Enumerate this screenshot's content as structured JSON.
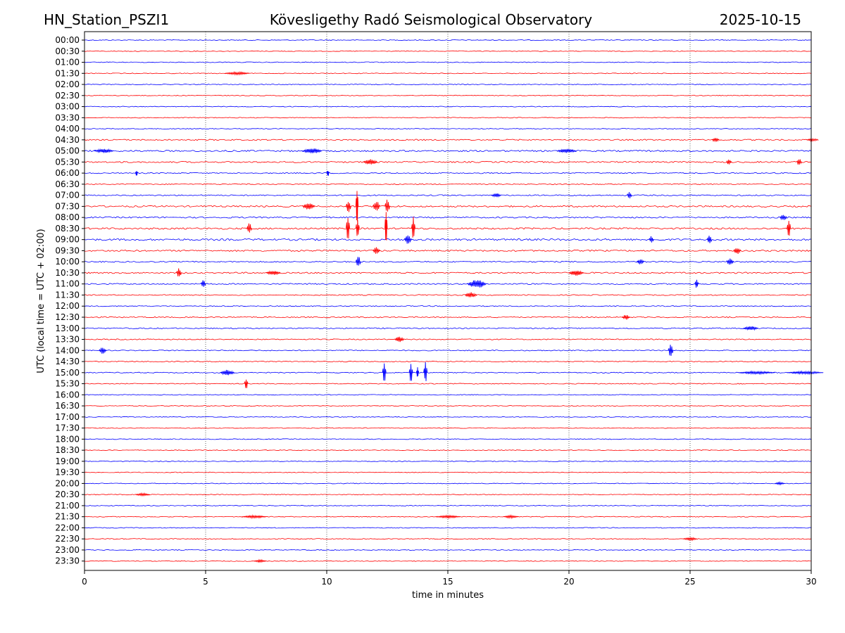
{
  "header": {
    "station": "HN_Station_PSZI1",
    "observatory": "Kövesligethy Radó Seismological Observatory",
    "date": "2025-10-15"
  },
  "colors": {
    "odd_row": "#0000ff",
    "even_row": "#ff0000",
    "axis": "#000000",
    "grid": "#000000"
  },
  "chart_data": {
    "type": "line",
    "title": "Kövesligethy Radó Seismological Observatory",
    "xlabel": "time in minutes",
    "ylabel": "UTC (local time = UTC + 02:00)",
    "xlim": [
      0,
      30
    ],
    "x_ticks": [
      0,
      5,
      10,
      15,
      20,
      25,
      30
    ],
    "x_tick_labels": [
      "0",
      "5",
      "10",
      "15",
      "20",
      "25",
      "30"
    ],
    "vertical_gridlines_at": [
      5,
      10,
      15,
      20,
      25
    ],
    "row_labels": [
      "00:00",
      "00:30",
      "01:00",
      "01:30",
      "02:00",
      "02:30",
      "03:00",
      "03:30",
      "04:00",
      "04:30",
      "05:00",
      "05:30",
      "06:00",
      "06:30",
      "07:00",
      "07:30",
      "08:00",
      "08:30",
      "09:00",
      "09:30",
      "10:00",
      "10:30",
      "11:00",
      "11:30",
      "12:00",
      "12:30",
      "13:00",
      "13:30",
      "14:00",
      "14:30",
      "15:00",
      "15:30",
      "16:00",
      "16:30",
      "17:00",
      "17:30",
      "18:00",
      "18:30",
      "19:00",
      "19:30",
      "20:00",
      "20:30",
      "21:00",
      "21:30",
      "22:00",
      "22:30",
      "23:00",
      "23:30"
    ],
    "row_colors": "alternating blue (:00) / red (:30)",
    "noise_level": [
      1,
      1,
      1,
      1,
      1,
      1,
      1,
      1,
      1,
      1.6,
      2,
      1.8,
      1.4,
      1.3,
      1.5,
      2,
      1.8,
      2.2,
      2.4,
      2,
      1.6,
      1.8,
      1.6,
      1.3,
      1.2,
      1.5,
      1.4,
      1.3,
      1.3,
      1.2,
      1.2,
      1.1,
      1,
      1,
      1,
      1,
      1,
      1,
      1,
      1,
      1,
      1,
      1,
      1,
      1,
      1.1,
      1,
      1
    ],
    "events": [
      {
        "row": "01:30",
        "minute": 5.8,
        "amplitude": 2,
        "duration": 1.0
      },
      {
        "row": "04:30",
        "minute": 25.9,
        "amplitude": 3,
        "duration": 0.3
      },
      {
        "row": "04:30",
        "minute": 29.8,
        "amplitude": 2,
        "duration": 0.5
      },
      {
        "row": "05:00",
        "minute": 0.4,
        "amplitude": 3,
        "duration": 0.8
      },
      {
        "row": "05:00",
        "minute": 9.0,
        "amplitude": 4,
        "duration": 0.8
      },
      {
        "row": "05:00",
        "minute": 19.5,
        "amplitude": 3,
        "duration": 0.8
      },
      {
        "row": "05:30",
        "minute": 11.5,
        "amplitude": 4,
        "duration": 0.6
      },
      {
        "row": "05:30",
        "minute": 26.5,
        "amplitude": 4,
        "duration": 0.2
      },
      {
        "row": "05:30",
        "minute": 29.4,
        "amplitude": 5,
        "duration": 0.2
      },
      {
        "row": "06:00",
        "minute": 10.0,
        "amplitude": 5,
        "duration": 0.1
      },
      {
        "row": "06:00",
        "minute": 2.1,
        "amplitude": 4,
        "duration": 0.1
      },
      {
        "row": "07:00",
        "minute": 16.8,
        "amplitude": 3,
        "duration": 0.4
      },
      {
        "row": "07:00",
        "minute": 22.4,
        "amplitude": 5,
        "duration": 0.2
      },
      {
        "row": "07:30",
        "minute": 10.8,
        "amplitude": 9,
        "duration": 0.2
      },
      {
        "row": "07:30",
        "minute": 11.2,
        "amplitude": 28,
        "duration": 0.1
      },
      {
        "row": "07:30",
        "minute": 11.9,
        "amplitude": 8,
        "duration": 0.3
      },
      {
        "row": "07:30",
        "minute": 12.4,
        "amplitude": 10,
        "duration": 0.2
      },
      {
        "row": "07:30",
        "minute": 9.0,
        "amplitude": 5,
        "duration": 0.5
      },
      {
        "row": "08:00",
        "minute": 28.7,
        "amplitude": 4,
        "duration": 0.3
      },
      {
        "row": "08:30",
        "minute": 10.8,
        "amplitude": 22,
        "duration": 0.15
      },
      {
        "row": "08:30",
        "minute": 11.2,
        "amplitude": 14,
        "duration": 0.15
      },
      {
        "row": "08:30",
        "minute": 12.4,
        "amplitude": 30,
        "duration": 0.1
      },
      {
        "row": "08:30",
        "minute": 13.5,
        "amplitude": 20,
        "duration": 0.15
      },
      {
        "row": "08:30",
        "minute": 6.7,
        "amplitude": 8,
        "duration": 0.2
      },
      {
        "row": "08:30",
        "minute": 29.0,
        "amplitude": 14,
        "duration": 0.15
      },
      {
        "row": "09:00",
        "minute": 13.2,
        "amplitude": 7,
        "duration": 0.3
      },
      {
        "row": "09:00",
        "minute": 25.7,
        "amplitude": 7,
        "duration": 0.2
      },
      {
        "row": "09:00",
        "minute": 23.3,
        "amplitude": 5,
        "duration": 0.2
      },
      {
        "row": "09:30",
        "minute": 11.9,
        "amplitude": 5,
        "duration": 0.3
      },
      {
        "row": "09:30",
        "minute": 26.8,
        "amplitude": 5,
        "duration": 0.3
      },
      {
        "row": "10:00",
        "minute": 11.2,
        "amplitude": 9,
        "duration": 0.2
      },
      {
        "row": "10:00",
        "minute": 22.8,
        "amplitude": 4,
        "duration": 0.3
      },
      {
        "row": "10:00",
        "minute": 26.5,
        "amplitude": 5,
        "duration": 0.3
      },
      {
        "row": "10:30",
        "minute": 3.8,
        "amplitude": 7,
        "duration": 0.2
      },
      {
        "row": "10:30",
        "minute": 7.5,
        "amplitude": 3,
        "duration": 0.6
      },
      {
        "row": "10:30",
        "minute": 20.0,
        "amplitude": 4,
        "duration": 0.6
      },
      {
        "row": "11:00",
        "minute": 15.8,
        "amplitude": 6,
        "duration": 0.8
      },
      {
        "row": "11:00",
        "minute": 4.8,
        "amplitude": 6,
        "duration": 0.2
      },
      {
        "row": "11:00",
        "minute": 25.2,
        "amplitude": 7,
        "duration": 0.15
      },
      {
        "row": "11:30",
        "minute": 15.7,
        "amplitude": 4,
        "duration": 0.5
      },
      {
        "row": "12:30",
        "minute": 22.2,
        "amplitude": 4,
        "duration": 0.3
      },
      {
        "row": "13:00",
        "minute": 27.2,
        "amplitude": 3,
        "duration": 0.6
      },
      {
        "row": "13:30",
        "minute": 12.8,
        "amplitude": 4,
        "duration": 0.4
      },
      {
        "row": "14:00",
        "minute": 0.6,
        "amplitude": 5,
        "duration": 0.3
      },
      {
        "row": "14:00",
        "minute": 24.1,
        "amplitude": 9,
        "duration": 0.2
      },
      {
        "row": "15:00",
        "minute": 12.3,
        "amplitude": 15,
        "duration": 0.15
      },
      {
        "row": "15:00",
        "minute": 13.4,
        "amplitude": 14,
        "duration": 0.15
      },
      {
        "row": "15:00",
        "minute": 13.7,
        "amplitude": 8,
        "duration": 0.1
      },
      {
        "row": "15:00",
        "minute": 14.0,
        "amplitude": 15,
        "duration": 0.15
      },
      {
        "row": "15:00",
        "minute": 5.6,
        "amplitude": 4,
        "duration": 0.6
      },
      {
        "row": "15:00",
        "minute": 27.0,
        "amplitude": 2,
        "duration": 1.5
      },
      {
        "row": "15:00",
        "minute": 29.0,
        "amplitude": 2,
        "duration": 1.5
      },
      {
        "row": "15:30",
        "minute": 6.6,
        "amplitude": 8,
        "duration": 0.15
      },
      {
        "row": "20:00",
        "minute": 28.5,
        "amplitude": 2,
        "duration": 0.4
      },
      {
        "row": "20:30",
        "minute": 2.1,
        "amplitude": 2,
        "duration": 0.6
      },
      {
        "row": "21:30",
        "minute": 6.5,
        "amplitude": 2,
        "duration": 1.0
      },
      {
        "row": "21:30",
        "minute": 14.5,
        "amplitude": 2,
        "duration": 1.0
      },
      {
        "row": "21:30",
        "minute": 17.3,
        "amplitude": 2,
        "duration": 0.6
      },
      {
        "row": "22:30",
        "minute": 24.7,
        "amplitude": 2,
        "duration": 0.6
      },
      {
        "row": "23:30",
        "minute": 7.0,
        "amplitude": 2,
        "duration": 0.5
      }
    ]
  }
}
